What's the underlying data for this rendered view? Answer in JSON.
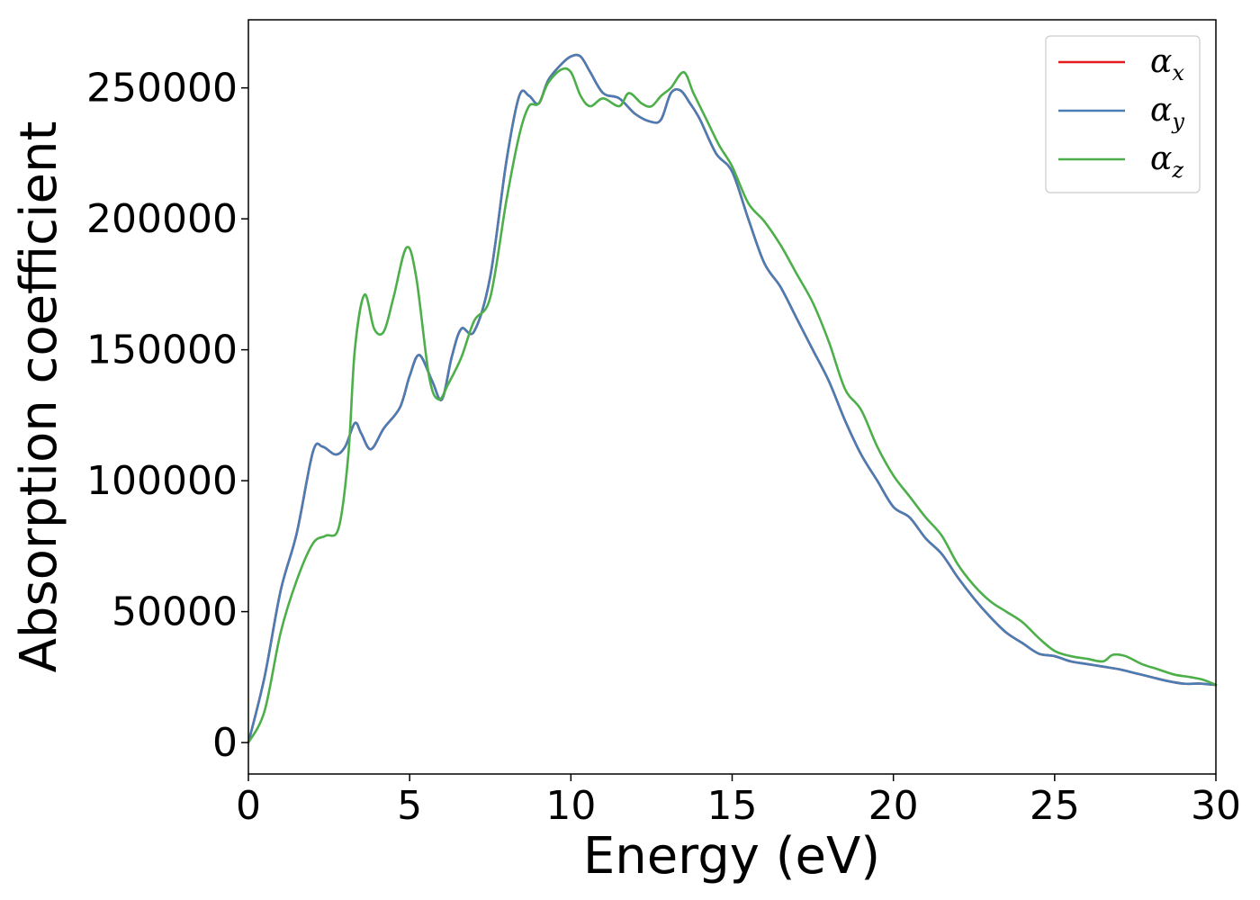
{
  "chart_data": {
    "type": "line",
    "title": "",
    "xlabel": "Energy (eV)",
    "ylabel": "Absorption coefficient",
    "xlim": [
      0,
      30
    ],
    "ylim": [
      -12000,
      276000
    ],
    "xticks": [
      0,
      5,
      10,
      15,
      20,
      25,
      30
    ],
    "yticks": [
      0,
      50000,
      100000,
      150000,
      200000,
      250000
    ],
    "grid": false,
    "legend_position": "top-right",
    "series": [
      {
        "name": "α_x",
        "legend_symbol": "α",
        "legend_subscript": "x",
        "color": "#e41a1c",
        "x": [
          0,
          0.5,
          1,
          1.5,
          2,
          2.3,
          2.7,
          3,
          3.3,
          3.5,
          3.8,
          4.2,
          4.7,
          5,
          5.3,
          5.7,
          6,
          6.3,
          6.6,
          7,
          7.5,
          8,
          8.4,
          8.7,
          9,
          9.3,
          9.7,
          10,
          10.3,
          10.6,
          11,
          11.5,
          12,
          12.5,
          12.8,
          13.1,
          13.4,
          13.7,
          14,
          14.5,
          15,
          15.5,
          16,
          16.5,
          17,
          17.5,
          18,
          18.5,
          19,
          19.5,
          20,
          20.5,
          21,
          21.5,
          22,
          22.5,
          23,
          23.5,
          24,
          24.5,
          25,
          25.5,
          26,
          26.5,
          27,
          27.5,
          28,
          28.5,
          29,
          29.5,
          30
        ],
        "y": [
          0,
          25000,
          58000,
          80000,
          111000,
          113000,
          110000,
          113000,
          122000,
          118000,
          112000,
          120000,
          128000,
          140000,
          148000,
          138000,
          131000,
          147000,
          158000,
          157000,
          178000,
          222000,
          247000,
          247000,
          244000,
          253000,
          259000,
          262000,
          262000,
          256000,
          248000,
          246000,
          240000,
          237000,
          238000,
          248000,
          249000,
          244000,
          238000,
          225000,
          218000,
          200000,
          183000,
          174000,
          162000,
          150000,
          138000,
          123000,
          110000,
          100000,
          90000,
          86000,
          78000,
          72000,
          63000,
          55000,
          48000,
          42000,
          38000,
          34000,
          33000,
          31000,
          30000,
          29000,
          28000,
          26500,
          25000,
          23500,
          22500,
          22500,
          22000
        ]
      },
      {
        "name": "α_y",
        "legend_symbol": "α",
        "legend_subscript": "y",
        "color": "#4a7db3",
        "x": [
          0,
          0.5,
          1,
          1.5,
          2,
          2.3,
          2.7,
          3,
          3.3,
          3.5,
          3.8,
          4.2,
          4.7,
          5,
          5.3,
          5.7,
          6,
          6.3,
          6.6,
          7,
          7.5,
          8,
          8.4,
          8.7,
          9,
          9.3,
          9.7,
          10,
          10.3,
          10.6,
          11,
          11.5,
          12,
          12.5,
          12.8,
          13.1,
          13.4,
          13.7,
          14,
          14.5,
          15,
          15.5,
          16,
          16.5,
          17,
          17.5,
          18,
          18.5,
          19,
          19.5,
          20,
          20.5,
          21,
          21.5,
          22,
          22.5,
          23,
          23.5,
          24,
          24.5,
          25,
          25.5,
          26,
          26.5,
          27,
          27.5,
          28,
          28.5,
          29,
          29.5,
          30
        ],
        "y": [
          0,
          25000,
          58000,
          80000,
          111000,
          113000,
          110000,
          113000,
          122000,
          118000,
          112000,
          120000,
          128000,
          140000,
          148000,
          138000,
          131000,
          147000,
          158000,
          157000,
          178000,
          222000,
          247000,
          247000,
          244000,
          253000,
          259000,
          262000,
          262000,
          256000,
          248000,
          246000,
          240000,
          237000,
          238000,
          248000,
          249000,
          244000,
          238000,
          225000,
          218000,
          200000,
          183000,
          174000,
          162000,
          150000,
          138000,
          123000,
          110000,
          100000,
          90000,
          86000,
          78000,
          72000,
          63000,
          55000,
          48000,
          42000,
          38000,
          34000,
          33000,
          31000,
          30000,
          29000,
          28000,
          26500,
          25000,
          23500,
          22500,
          22500,
          22000
        ]
      },
      {
        "name": "α_z",
        "legend_symbol": "α",
        "legend_subscript": "z",
        "color": "#4daf4a",
        "x": [
          0,
          0.5,
          1,
          1.5,
          2,
          2.4,
          2.8,
          3.1,
          3.3,
          3.6,
          3.9,
          4.2,
          4.5,
          4.9,
          5.2,
          5.6,
          5.9,
          6.2,
          6.6,
          7,
          7.5,
          8,
          8.4,
          8.7,
          9,
          9.3,
          9.7,
          10,
          10.3,
          10.6,
          11,
          11.5,
          11.8,
          12.2,
          12.5,
          12.8,
          13.1,
          13.5,
          13.8,
          14.2,
          14.6,
          15,
          15.5,
          16,
          16.5,
          17,
          17.5,
          18,
          18.5,
          19,
          19.5,
          20,
          20.5,
          21,
          21.5,
          22,
          22.5,
          23,
          23.5,
          24,
          24.5,
          25,
          25.5,
          26,
          26.5,
          26.8,
          27.2,
          27.7,
          28.2,
          28.7,
          29.2,
          29.6,
          30
        ],
        "y": [
          0,
          12000,
          42000,
          62000,
          76000,
          79000,
          82000,
          110000,
          150000,
          171000,
          158000,
          157000,
          170000,
          189000,
          178000,
          140000,
          131000,
          137000,
          147000,
          161000,
          170000,
          207000,
          232000,
          243000,
          244000,
          252000,
          257000,
          256000,
          247000,
          243000,
          246000,
          243000,
          248000,
          244000,
          243000,
          247000,
          250000,
          256000,
          248000,
          238000,
          228000,
          220000,
          206000,
          199000,
          190000,
          179000,
          168000,
          153000,
          135000,
          127000,
          113000,
          102000,
          94000,
          86000,
          79000,
          68000,
          60000,
          54000,
          50000,
          46000,
          40000,
          35000,
          33000,
          32000,
          31000,
          33500,
          33000,
          30000,
          28000,
          26000,
          25000,
          24000,
          22000
        ]
      }
    ]
  }
}
